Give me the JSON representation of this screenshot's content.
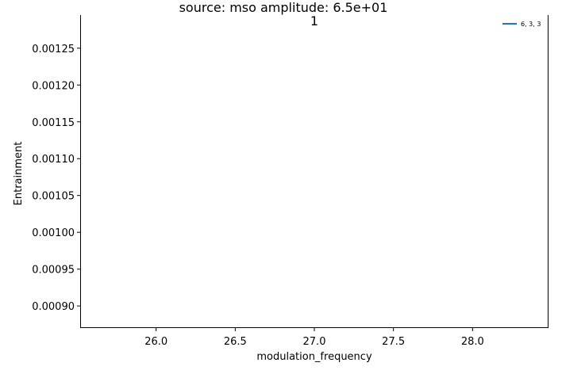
{
  "chart_data": {
    "type": "line",
    "title": "source: mso amplitude: 6.5e+01",
    "subtitle": "1",
    "xlabel": "modulation_frequency",
    "ylabel": "Entrainment",
    "xlim": [
      25.52,
      28.48
    ],
    "ylim": [
      0.00087,
      0.001295
    ],
    "xticks": [
      26.0,
      26.5,
      27.0,
      27.5,
      28.0
    ],
    "xtick_labels": [
      "26.0",
      "26.5",
      "27.0",
      "27.5",
      "28.0"
    ],
    "yticks": [
      0.0009,
      0.00095,
      0.001,
      0.00105,
      0.0011,
      0.00115,
      0.0012,
      0.00125
    ],
    "ytick_labels": [
      "0.00090",
      "0.00095",
      "0.00100",
      "0.00105",
      "0.00110",
      "0.00115",
      "0.00120",
      "0.00125"
    ],
    "series": [
      {
        "name": "6, 3, 3",
        "color": "#1f77b4",
        "x": [],
        "y": []
      }
    ],
    "legend_position": "top-right",
    "grid": false
  }
}
